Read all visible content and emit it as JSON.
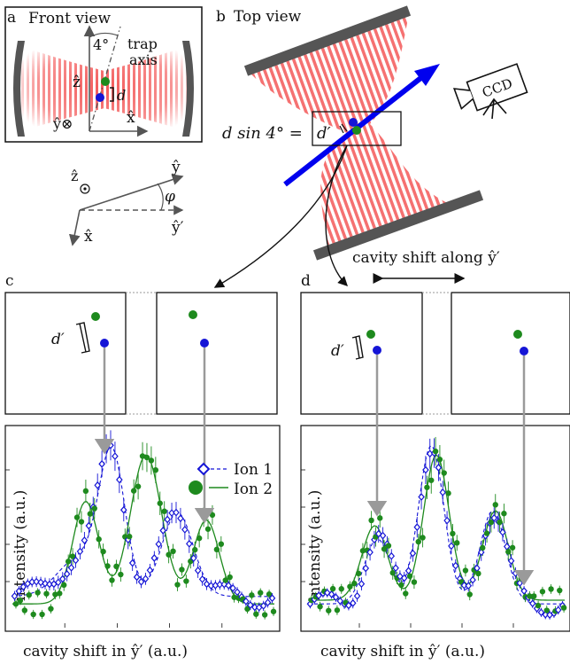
{
  "panels": {
    "a": {
      "letter": "a",
      "title": "Front view",
      "angle": "4°",
      "trap_axis_1": "trap",
      "trap_axis_2": "axis",
      "z": "ẑ",
      "y": "ŷ⊗",
      "x": "x̂",
      "d": "d"
    },
    "b": {
      "letter": "b",
      "title": "Top view",
      "ccd": "CCD",
      "dsin_label": "d sin 4° =",
      "dprime": "d′",
      "shift_label": "cavity shift along ŷ′"
    },
    "axes_diagram": {
      "z": "ẑ",
      "y": "ŷ",
      "y_prime": "ŷ′",
      "x": "x̂",
      "phi": "φ"
    },
    "c": {
      "letter": "c",
      "dprime": "d′",
      "ylabel": "intensity (a.u.)",
      "xlabel": "cavity shift in ŷ′ (a.u.)"
    },
    "d": {
      "letter": "d",
      "dprime": "d′",
      "ylabel": "intensity (a.u.)",
      "xlabel": "cavity shift in ŷ′ (a.u.)"
    }
  },
  "legend": [
    {
      "label": "Ion 1",
      "color": "#1515d6",
      "marker": "open-diamond",
      "line": "dashed"
    },
    {
      "label": "Ion 2",
      "color": "#1e8a1e",
      "marker": "filled-circle",
      "line": "solid"
    }
  ],
  "colors": {
    "ion1": "#1515d6",
    "ion2": "#1e8a1e",
    "laser": "#ee2020",
    "beam": "#0000ee",
    "mirror": "#555555"
  }
}
